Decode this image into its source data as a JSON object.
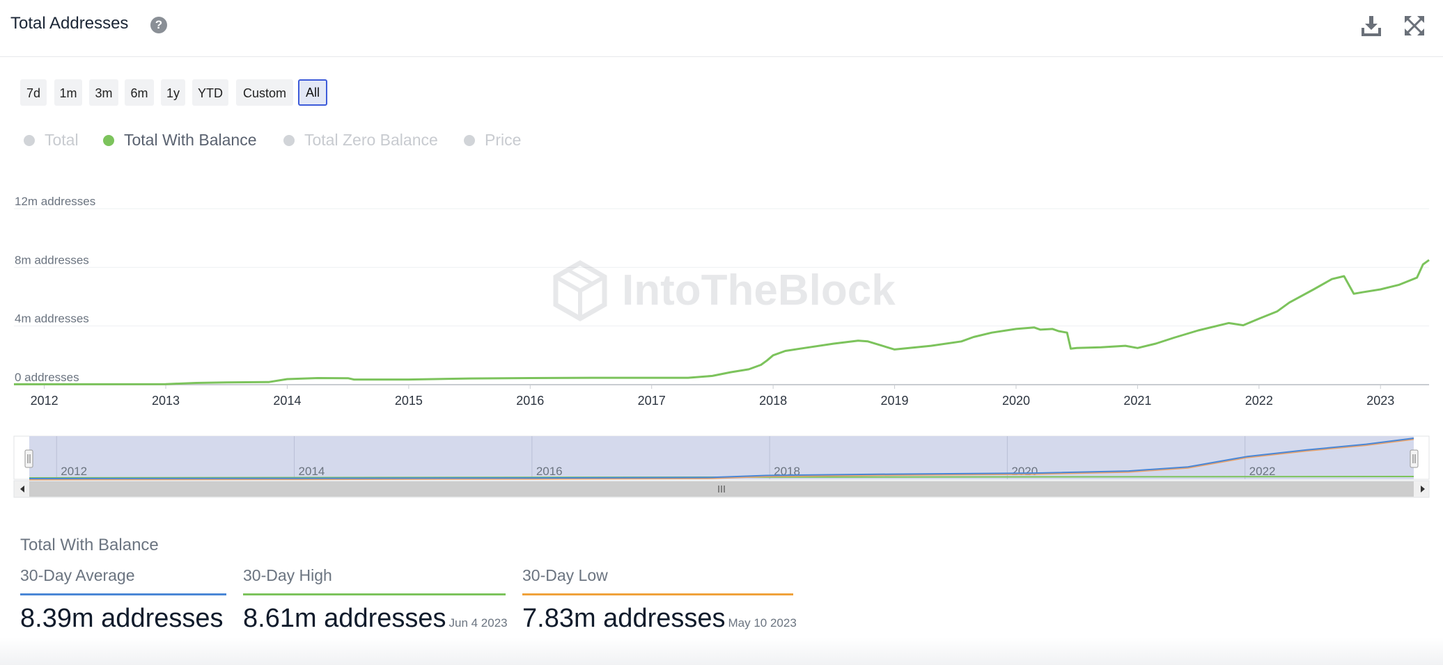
{
  "header": {
    "title": "Total Addresses",
    "help_icon": "question-circle-icon",
    "download_icon": "download-icon",
    "fullscreen_icon": "expand-icon"
  },
  "range_buttons": [
    {
      "label": "7d",
      "active": false
    },
    {
      "label": "1m",
      "active": false
    },
    {
      "label": "3m",
      "active": false
    },
    {
      "label": "6m",
      "active": false
    },
    {
      "label": "1y",
      "active": false
    },
    {
      "label": "YTD",
      "active": false
    },
    {
      "label": "Custom",
      "active": false
    },
    {
      "label": "All",
      "active": true
    }
  ],
  "legend": [
    {
      "label": "Total",
      "enabled": false
    },
    {
      "label": "Total With Balance",
      "enabled": true
    },
    {
      "label": "Total Zero Balance",
      "enabled": false
    },
    {
      "label": "Price",
      "enabled": false
    }
  ],
  "watermark": "IntoTheBlock",
  "chart_data": {
    "type": "line",
    "title": "Total Addresses",
    "series_name": "Total With Balance",
    "color": "#7cc35c",
    "x_unit": "year",
    "ylabel": "addresses",
    "ylim": [
      0,
      12000000
    ],
    "y_ticks": [
      {
        "value": 0,
        "label": "0 addresses"
      },
      {
        "value": 4000000,
        "label": "4m addresses"
      },
      {
        "value": 8000000,
        "label": "8m addresses"
      },
      {
        "value": 12000000,
        "label": "12m addresses"
      }
    ],
    "xlim": [
      2011.75,
      2023.4
    ],
    "x_ticks": [
      2012,
      2013,
      2014,
      2015,
      2016,
      2017,
      2018,
      2019,
      2020,
      2021,
      2022,
      2023
    ],
    "x": [
      2011.75,
      2012.0,
      2012.5,
      2013.0,
      2013.25,
      2013.5,
      2013.85,
      2014.0,
      2014.25,
      2014.5,
      2014.55,
      2015.0,
      2015.5,
      2016.0,
      2016.5,
      2017.0,
      2017.3,
      2017.5,
      2017.65,
      2017.8,
      2017.9,
      2017.95,
      2018.0,
      2018.1,
      2018.3,
      2018.5,
      2018.7,
      2018.78,
      2019.0,
      2019.3,
      2019.55,
      2019.65,
      2019.8,
      2020.0,
      2020.15,
      2020.2,
      2020.3,
      2020.35,
      2020.42,
      2020.45,
      2020.5,
      2020.7,
      2020.9,
      2021.0,
      2021.15,
      2021.3,
      2021.5,
      2021.75,
      2021.87,
      2022.0,
      2022.15,
      2022.25,
      2022.45,
      2022.6,
      2022.7,
      2022.78,
      2022.85,
      2023.0,
      2023.1,
      2023.15,
      2023.3,
      2023.35,
      2023.4
    ],
    "y": [
      30000,
      30000,
      30000,
      40000,
      120000,
      150000,
      180000,
      380000,
      450000,
      440000,
      350000,
      350000,
      420000,
      450000,
      470000,
      470000,
      470000,
      600000,
      850000,
      1050000,
      1350000,
      1650000,
      2000000,
      2300000,
      2550000,
      2800000,
      3000000,
      2950000,
      2400000,
      2650000,
      2950000,
      3250000,
      3550000,
      3800000,
      3900000,
      3750000,
      3800000,
      3650000,
      3550000,
      2450000,
      2500000,
      2550000,
      2650000,
      2500000,
      2800000,
      3200000,
      3700000,
      4200000,
      4050000,
      4500000,
      5000000,
      5600000,
      6500000,
      7200000,
      7400000,
      6200000,
      6300000,
      6500000,
      6700000,
      6800000,
      7300000,
      8200000,
      8500000
    ],
    "navigator": {
      "year_labels": [
        "2012",
        "2014",
        "2016",
        "2018",
        "2020",
        "2022"
      ],
      "x": [
        2011.75,
        2014.0,
        2016.0,
        2017.5,
        2017.95,
        2019.0,
        2020.2,
        2021.0,
        2021.5,
        2022.0,
        2022.5,
        2023.0,
        2023.4
      ],
      "y": [
        0,
        100000,
        250000,
        450000,
        1200000,
        1700000,
        2100000,
        2900000,
        4500000,
        8500000,
        11000000,
        13200000,
        15500000
      ]
    }
  },
  "stats": {
    "title": "Total With Balance",
    "items": [
      {
        "label": "30-Day Average",
        "value": "8.39m addresses",
        "date": "",
        "color": "#4a87d6"
      },
      {
        "label": "30-Day High",
        "value": "8.61m addresses",
        "date": "Jun 4 2023",
        "color": "#7cc35c"
      },
      {
        "label": "30-Day Low",
        "value": "7.83m addresses",
        "date": "May 10 2023",
        "color": "#f0a23b"
      }
    ]
  }
}
